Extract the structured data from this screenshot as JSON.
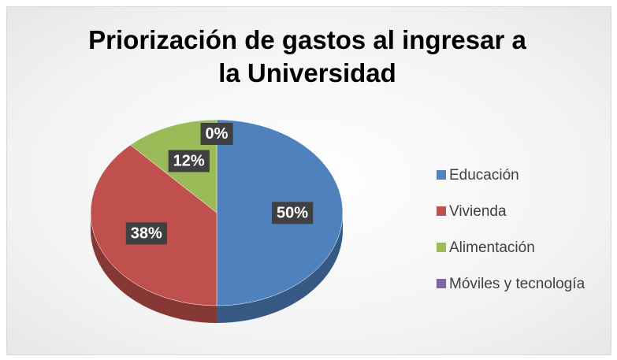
{
  "chart_data": {
    "type": "pie",
    "title": "Priorización de gastos al ingresar a la Universidad",
    "categories": [
      "Educación",
      "Vivienda",
      "Alimentación",
      "Móviles y tecnología"
    ],
    "values": [
      50,
      38,
      12,
      0
    ],
    "value_labels": [
      "50%",
      "38%",
      "12%",
      "0%"
    ],
    "colors": [
      "#4f81bd",
      "#c0504d",
      "#9bbb59",
      "#8064a2"
    ],
    "legend": "right"
  }
}
